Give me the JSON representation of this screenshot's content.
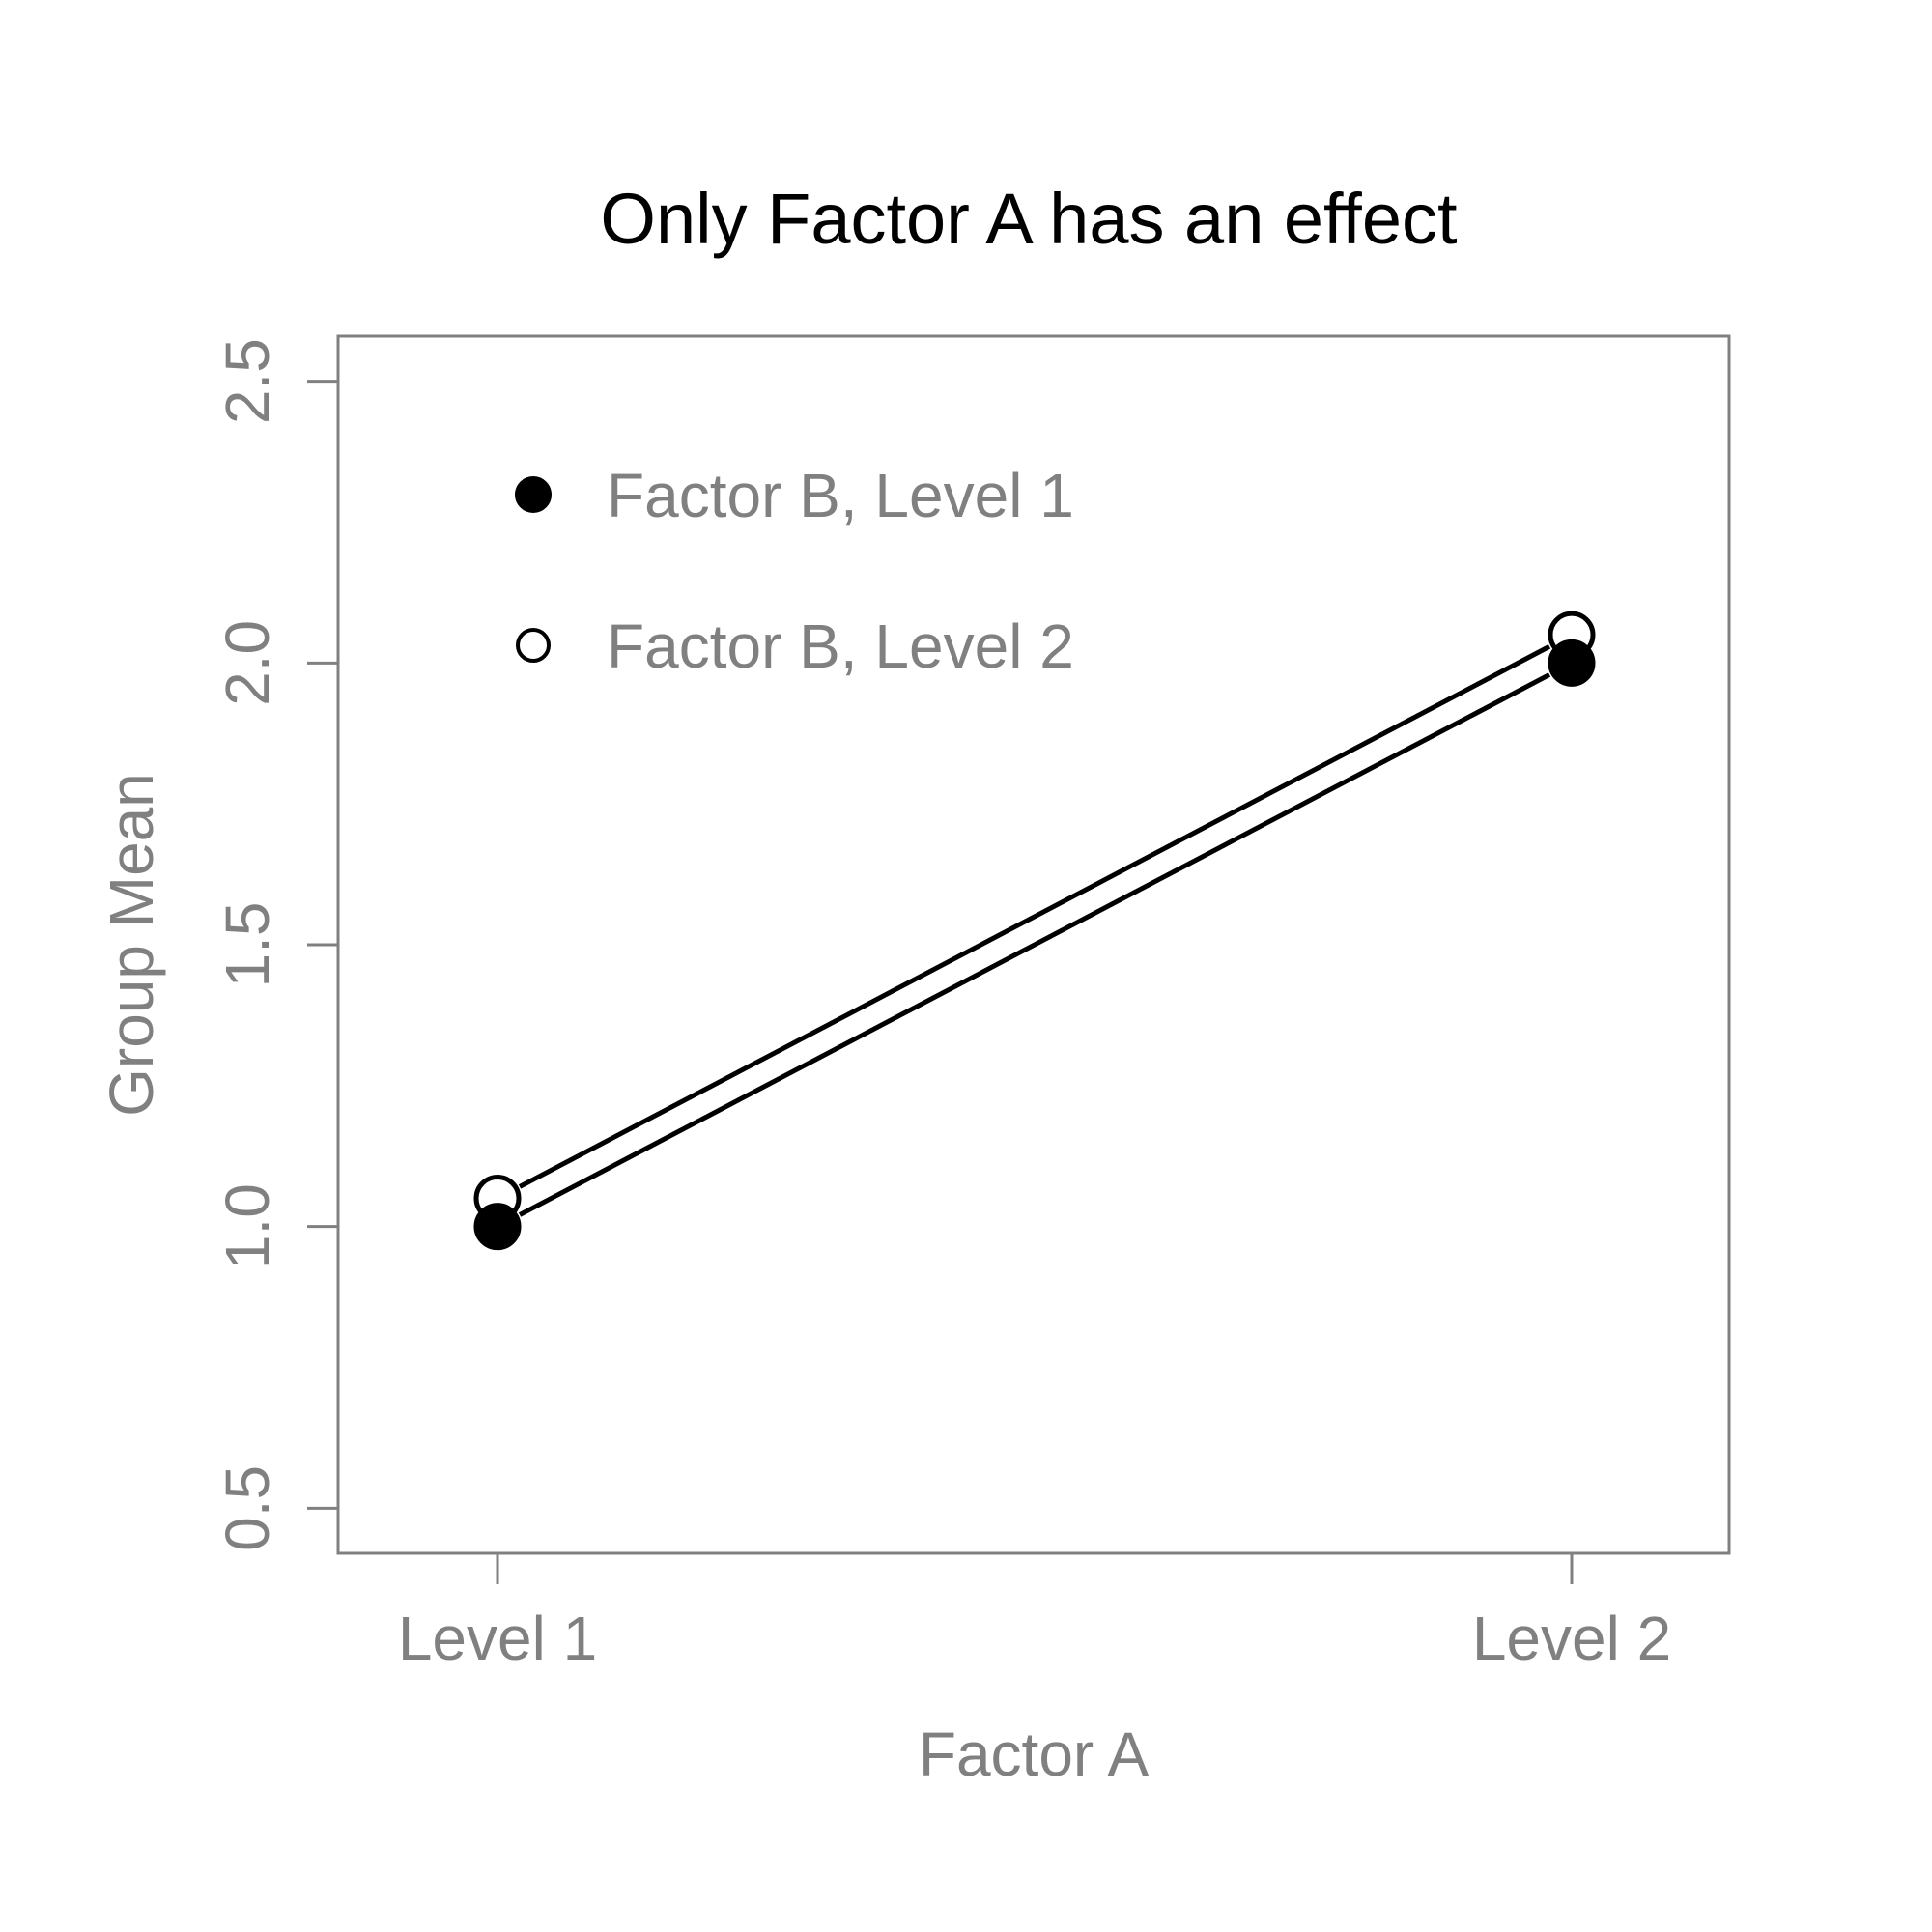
{
  "chart_data": {
    "type": "line",
    "title": "Only Factor A has an effect",
    "xlabel": "Factor A",
    "ylabel": "Group Mean",
    "categories": [
      "Level 1",
      "Level 2"
    ],
    "series": [
      {
        "name": "Factor B, Level 1",
        "values": [
          1.0,
          2.0
        ],
        "marker": "filled-circle"
      },
      {
        "name": "Factor B, Level 2",
        "values": [
          1.05,
          2.05
        ],
        "marker": "open-circle"
      }
    ],
    "ylim": [
      0.42,
      2.58
    ],
    "yticks": [
      "0.5",
      "1.0",
      "1.5",
      "2.0",
      "2.5"
    ],
    "grid": false,
    "legend_position": "top-left",
    "colors": {
      "line": "#000000",
      "axis": "#808080",
      "text": "#808080",
      "title": "#000000"
    }
  }
}
